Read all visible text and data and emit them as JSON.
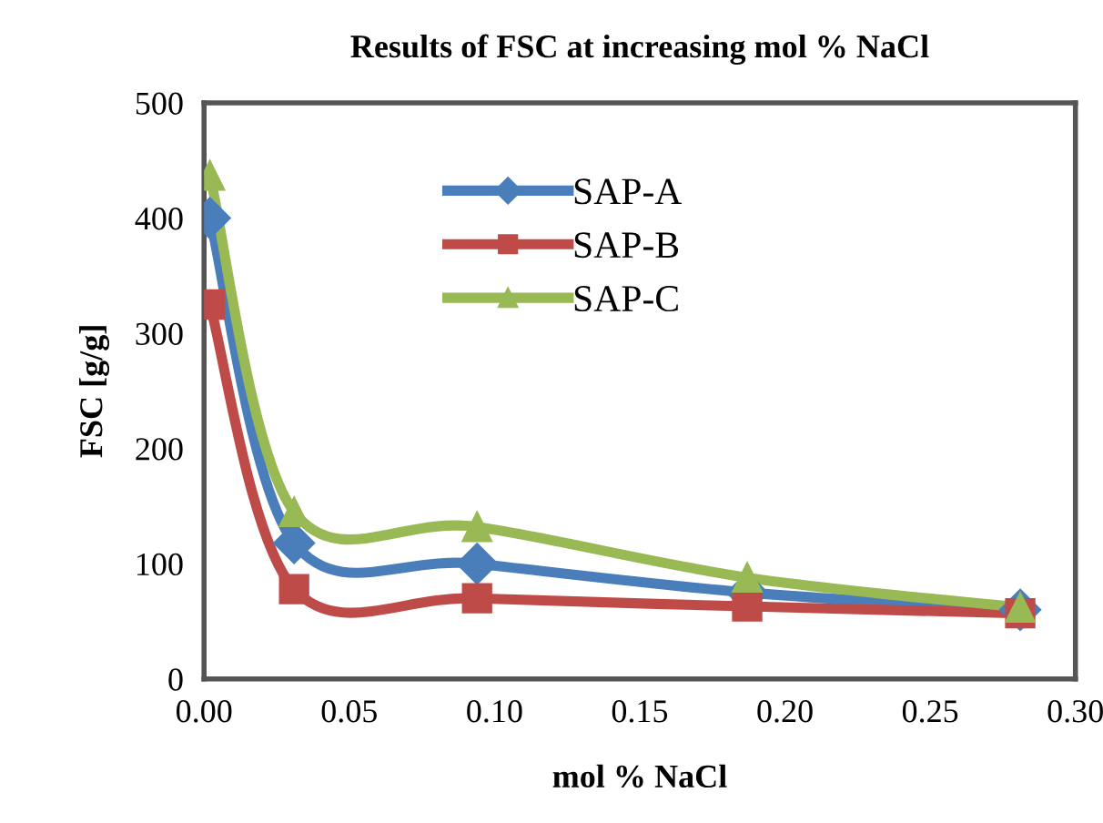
{
  "chart_data": {
    "type": "line",
    "title": "Results of FSC at increasing mol % NaCl",
    "xlabel": "mol % NaCl",
    "ylabel": "FSC [g/g]",
    "xlim": [
      0,
      0.3
    ],
    "xticks": [
      {
        "value": 0,
        "label": "0.00"
      },
      {
        "value": 0.05,
        "label": "0.05"
      },
      {
        "value": 0.1,
        "label": "0.10"
      },
      {
        "value": 0.15,
        "label": "0.15"
      },
      {
        "value": 0.2,
        "label": "0.20"
      },
      {
        "value": 0.25,
        "label": "0.25"
      },
      {
        "value": 0.3,
        "label": "0.30"
      }
    ],
    "ylim": [
      0,
      500
    ],
    "yticks": [
      0,
      100,
      200,
      300,
      400,
      500
    ],
    "grid": false,
    "legend": "top",
    "line_style": "solid",
    "x": [
      0.002,
      0.031,
      0.094,
      0.187,
      0.281
    ],
    "series": [
      {
        "name": "SAP-A",
        "color": "#4a7ebb",
        "marker": "diamond",
        "values": [
          400,
          118,
          100,
          75,
          60
        ]
      },
      {
        "name": "SAP-B",
        "color": "#be4b48",
        "marker": "square",
        "values": [
          325,
          78,
          70,
          63,
          57
        ]
      },
      {
        "name": "SAP-C",
        "color": "#98b954",
        "marker": "triangle",
        "values": [
          437,
          145,
          132,
          88,
          62
        ]
      }
    ]
  }
}
